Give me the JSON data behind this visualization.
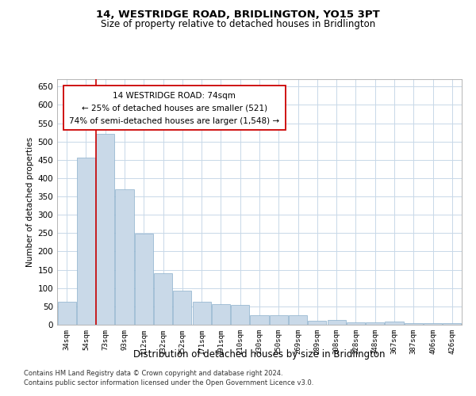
{
  "title": "14, WESTRIDGE ROAD, BRIDLINGTON, YO15 3PT",
  "subtitle": "Size of property relative to detached houses in Bridlington",
  "xlabel": "Distribution of detached houses by size in Bridlington",
  "ylabel": "Number of detached properties",
  "categories": [
    "34sqm",
    "54sqm",
    "73sqm",
    "93sqm",
    "112sqm",
    "132sqm",
    "152sqm",
    "171sqm",
    "191sqm",
    "210sqm",
    "230sqm",
    "250sqm",
    "269sqm",
    "289sqm",
    "308sqm",
    "328sqm",
    "348sqm",
    "367sqm",
    "387sqm",
    "406sqm",
    "426sqm"
  ],
  "values": [
    62,
    457,
    521,
    370,
    248,
    140,
    93,
    62,
    57,
    55,
    27,
    26,
    27,
    11,
    12,
    7,
    6,
    9,
    4,
    5,
    4
  ],
  "bar_color": "#c9d9e8",
  "bar_edge_color": "#8ab0cc",
  "grid_color": "#c8d8e8",
  "background_color": "#ffffff",
  "annotation_box_text_line1": "14 WESTRIDGE ROAD: 74sqm",
  "annotation_box_text_line2": "← 25% of detached houses are smaller (521)",
  "annotation_box_text_line3": "74% of semi-detached houses are larger (1,548) →",
  "vline_x_index": 2,
  "vline_color": "#cc0000",
  "ylim": [
    0,
    670
  ],
  "yticks": [
    0,
    50,
    100,
    150,
    200,
    250,
    300,
    350,
    400,
    450,
    500,
    550,
    600,
    650
  ],
  "footnote_line1": "Contains HM Land Registry data © Crown copyright and database right 2024.",
  "footnote_line2": "Contains public sector information licensed under the Open Government Licence v3.0."
}
